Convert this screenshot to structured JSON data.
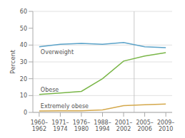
{
  "chart_data": {
    "type": "line",
    "categories": [
      "1960–\n1962",
      "1971–\n1974",
      "1976–\n1980",
      "1988–\n1994",
      "2001–\n2002",
      "2005–\n2006",
      "2009–\n2010"
    ],
    "series": [
      {
        "name": "Overweight",
        "color": "#5ba3c9",
        "values": [
          39.0,
          40.5,
          41.0,
          40.5,
          41.5,
          39.0,
          38.5
        ]
      },
      {
        "name": "Obese",
        "color": "#7ab648",
        "values": [
          10.7,
          11.5,
          12.5,
          20.0,
          30.5,
          33.5,
          35.5
        ]
      },
      {
        "name": "Extremely obese",
        "color": "#d4a84b",
        "values": [
          0.8,
          0.9,
          1.0,
          1.5,
          4.0,
          4.5,
          5.0
        ]
      }
    ],
    "ylabel": "Percent",
    "ylim": [
      0,
      60
    ],
    "yticks": [
      0,
      10,
      20,
      30,
      40,
      50,
      60
    ],
    "grid": true
  }
}
